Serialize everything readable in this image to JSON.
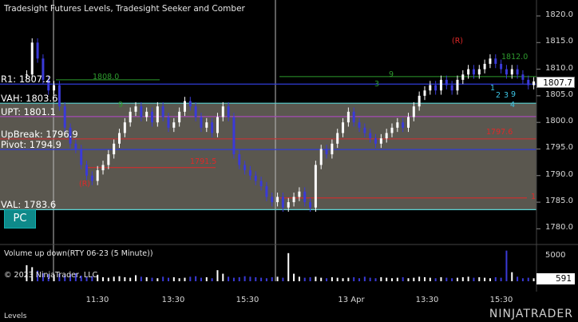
{
  "window": {
    "title": "Tradesight Futures Levels, Tradesight Seeker and Comber",
    "volume_panel_title": "Volume up down(RTY 06-23 (5 Minute))",
    "copyright": "© 2023 NinjaTrader, LLC",
    "tab_label": "Levels",
    "brand": "NINJATRADER",
    "pc_button": "PC",
    "last_price": "1807.7",
    "last_volume": "591"
  },
  "colors": {
    "background": "#000000",
    "level_blue": "#2f3cd6",
    "level_cyan": "#5ad4d4",
    "level_purple": "#a64bb5",
    "level_red": "#c83232",
    "value_area_fill": "#5a574f",
    "bull_candle": "#ffffff",
    "bear_candle": "#3a3ad8",
    "seeker_green": "#2e9b2e",
    "comber_cyan": "#3cc6e6",
    "signal_red": "#e02828"
  },
  "levels": [
    {
      "label": "R1: 1807.2",
      "value": 1807.2,
      "color": "blue"
    },
    {
      "label": "VAH: 1803.6",
      "value": 1803.6,
      "color": "cyan"
    },
    {
      "label": "UPT: 1801.1",
      "value": 1801.1,
      "color": "purple"
    },
    {
      "label": "UpBreak: 1796.9",
      "value": 1796.9,
      "color": "red"
    },
    {
      "label": "Pivot: 1794.9",
      "value": 1794.9,
      "color": "blue"
    },
    {
      "label": "VAL: 1783.6",
      "value": 1783.6,
      "color": "cyan"
    }
  ],
  "annotations": {
    "level_1808": "1808.0",
    "level_1812": "1812.0",
    "level_1797": "1797.6",
    "level_1791": "1791.5",
    "r_top": "(R)",
    "r_bottom": "(R)",
    "red_1": "1",
    "seeker_9_left": "9",
    "seeker_9_top": "9",
    "seeker_3": "3",
    "comber_1": "1",
    "comber_2": "2",
    "comber_3": "3",
    "comber_4": "4",
    "comber_9": "9"
  },
  "chart_data": {
    "type": "candlestick",
    "instrument": "RTY 06-23 (5 Minute)",
    "y_ticks": [
      1780.0,
      1785.0,
      1790.0,
      1795.0,
      1800.0,
      1805.0,
      1810.0,
      1815.0,
      1820.0
    ],
    "y_tick_labels": [
      "1780.0",
      "1785.0",
      "1790.0",
      "1795.0",
      "1800.0",
      "1805.0",
      "1810.0",
      "1815.0",
      "1820.0"
    ],
    "ylim": [
      1777.5,
      1823.0
    ],
    "x_tick_labels": [
      "11:30",
      "13:30",
      "15:30",
      "13 Apr",
      "13:30",
      "15:30"
    ],
    "volume_ticks": [
      {
        "label": "5000",
        "value": 5000
      }
    ],
    "closes": [
      1809,
      1815,
      1812,
      1808,
      1806,
      1807,
      1803,
      1799,
      1796,
      1795,
      1792,
      1790,
      1789,
      1791,
      1792,
      1794,
      1796,
      1798,
      1800,
      1802,
      1803,
      1801,
      1802,
      1800,
      1803,
      1801,
      1799,
      1800,
      1802,
      1804,
      1803,
      1801,
      1799,
      1800,
      1798,
      1801,
      1803,
      1801,
      1794,
      1792,
      1791,
      1790,
      1789,
      1788,
      1786,
      1785,
      1786,
      1784,
      1785,
      1786,
      1787,
      1785,
      1784,
      1792,
      1795,
      1794,
      1796,
      1798,
      1800,
      1802,
      1800,
      1799,
      1798,
      1797,
      1796,
      1797,
      1798,
      1799,
      1800,
      1799,
      1801,
      1803,
      1805,
      1806,
      1807,
      1806,
      1808,
      1807,
      1806,
      1808,
      1809,
      1810,
      1809,
      1810,
      1811,
      1812,
      1811,
      1810,
      1809,
      1810,
      1809,
      1808,
      1807,
      1807.7
    ],
    "volumes": [
      3200,
      2800,
      2100,
      1600,
      1400,
      1300,
      1500,
      1200,
      1400,
      1600,
      1100,
      900,
      1000,
      1300,
      800,
      700,
      900,
      1000,
      800,
      700,
      1200,
      900,
      800,
      700,
      600,
      900,
      700,
      800,
      600,
      700,
      900,
      1000,
      700,
      800,
      600,
      2200,
      1500,
      900,
      700,
      800,
      1000,
      900,
      800,
      700,
      600,
      800,
      900,
      700,
      5600,
      1500,
      900,
      700,
      800,
      900,
      700,
      600,
      800,
      700,
      600,
      700,
      800,
      600,
      900,
      700,
      600,
      800,
      700,
      600,
      700,
      800,
      600,
      700,
      900,
      800,
      700,
      600,
      800,
      700,
      600,
      700,
      800,
      900,
      700,
      800,
      700,
      600,
      800,
      700,
      6100,
      1800,
      900,
      591,
      700,
      591
    ]
  }
}
